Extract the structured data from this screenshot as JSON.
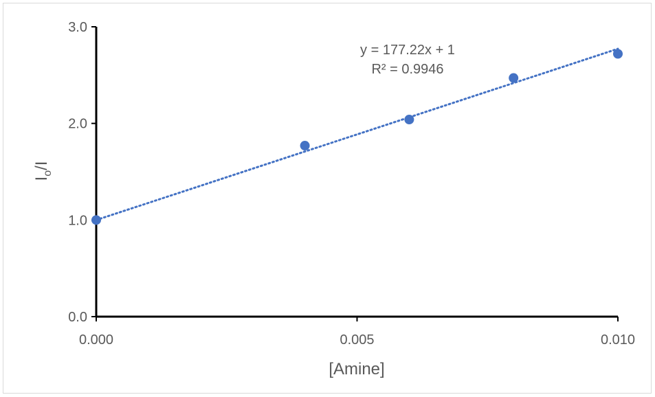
{
  "chart_data": {
    "type": "scatter",
    "xlabel": "[Amine]",
    "ylabel": "Io/I",
    "ylabel_main": "I",
    "ylabel_sub": "o",
    "ylabel_tail": "/I",
    "xlim": [
      0,
      0.01
    ],
    "ylim": [
      0,
      3
    ],
    "x_ticks": [
      "0.000",
      "0.005",
      "0.010"
    ],
    "x_tick_values": [
      0,
      0.005,
      0.01
    ],
    "y_ticks": [
      "0.0",
      "1.0",
      "2.0",
      "3.0"
    ],
    "y_tick_values": [
      0,
      1,
      2,
      3
    ],
    "grid": false,
    "series": [
      {
        "x": [
          0,
          0.004,
          0.006,
          0.008,
          0.01
        ],
        "y": [
          1.0,
          1.77,
          2.04,
          2.47,
          2.72
        ],
        "color": "#4472c4"
      }
    ],
    "trendline": {
      "type": "linear",
      "slope": 177.22,
      "intercept": 1,
      "style": "dotted",
      "color": "#4472c4"
    },
    "annotations": {
      "equation": "y = 177.22x + 1",
      "r_squared": "R² = 0.9946"
    }
  }
}
